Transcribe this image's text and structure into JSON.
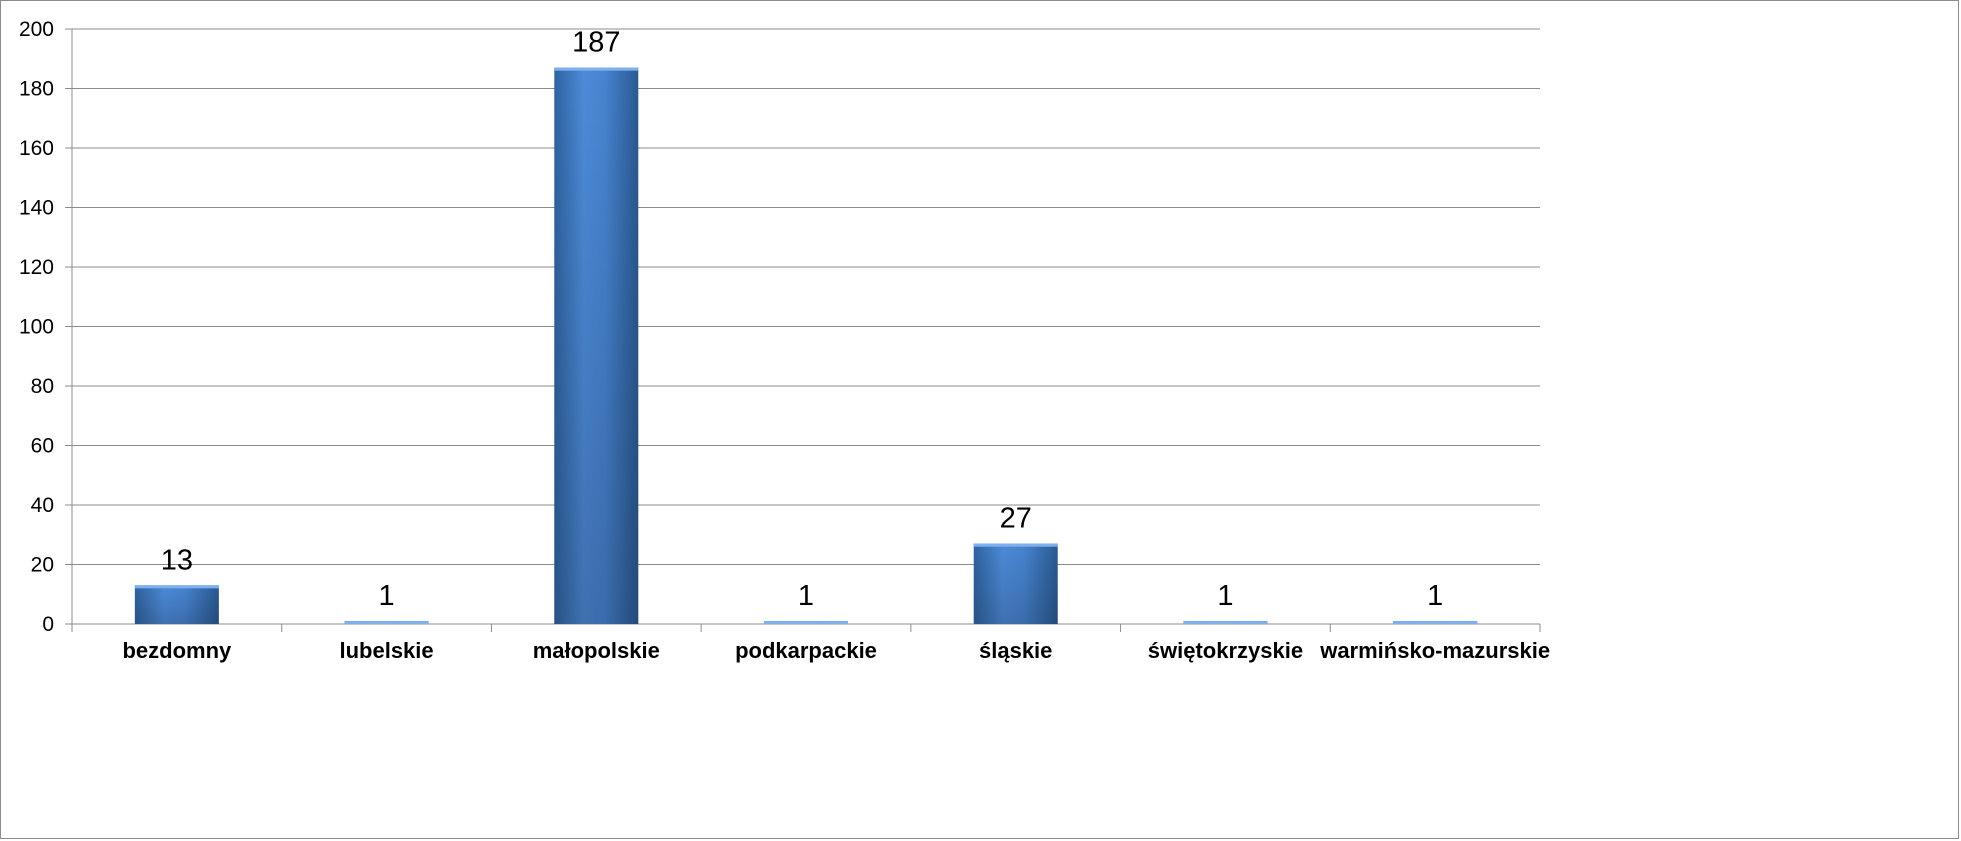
{
  "chart_data": {
    "type": "bar",
    "categories": [
      "bezdomny",
      "lubelskie",
      "małopolskie",
      "podkarpackie",
      "śląskie",
      "świętokrzyskie",
      "warmińsko-mazurskie"
    ],
    "values": [
      13,
      1,
      187,
      1,
      27,
      1,
      1
    ],
    "data_labels": [
      "13",
      "1",
      "187",
      "1",
      "27",
      "1",
      "1"
    ],
    "title": "",
    "xlabel": "",
    "ylabel": "",
    "ylim": [
      0,
      200
    ],
    "yticks": [
      0,
      20,
      40,
      60,
      80,
      100,
      120,
      140,
      160,
      180,
      200
    ],
    "ytick_labels": [
      "0",
      "20",
      "40",
      "60",
      "80",
      "100",
      "120",
      "140",
      "160",
      "180",
      "200"
    ],
    "grid": true,
    "legend": "none",
    "colors": {
      "bar": "#4f81bd",
      "bar_light": "#5a97e0",
      "bar_dark": "#2c5d95",
      "grid": "#8c8c8c",
      "axis": "#8c8c8c"
    }
  }
}
